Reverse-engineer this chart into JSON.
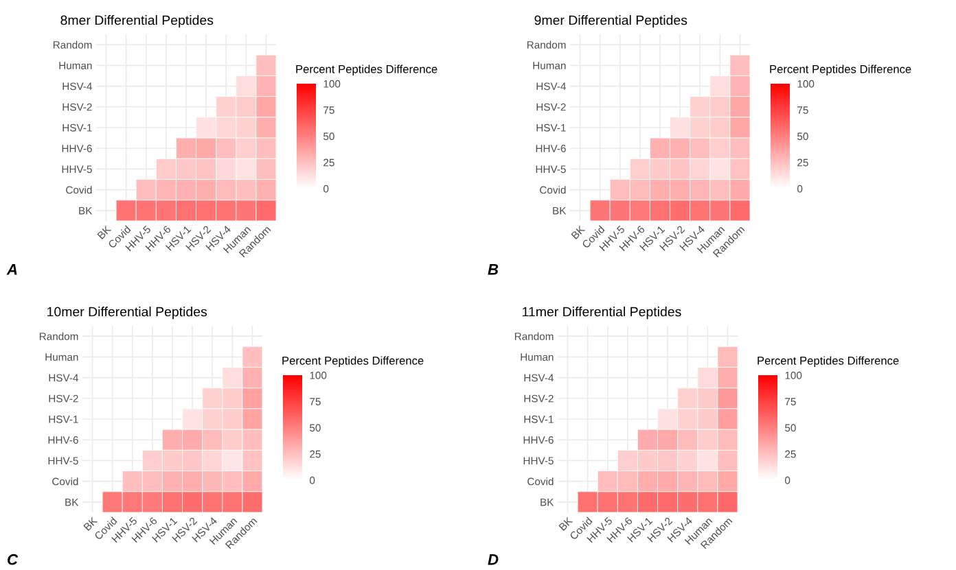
{
  "chart_data": [
    {
      "type": "heatmap",
      "title": "8mer Differential Peptides",
      "clabel": "Percent Peptides Difference",
      "annotations": [
        "A"
      ],
      "grid": true,
      "categories": [
        "BK",
        "Covid",
        "HHV-5",
        "HHV-6",
        "HSV-1",
        "HSV-2",
        "HSV-4",
        "Human",
        "Random"
      ],
      "y_categories": [
        "Random",
        "Human",
        "HSV-4",
        "HSV-2",
        "HSV-1",
        "HHV-6",
        "HHV-5",
        "Covid",
        "BK"
      ],
      "cells": [
        [
          null,
          null,
          null,
          null,
          null,
          null,
          null,
          null,
          null
        ],
        [
          null,
          null,
          null,
          null,
          null,
          null,
          null,
          null,
          25
        ],
        [
          null,
          null,
          null,
          null,
          null,
          null,
          null,
          13,
          30
        ],
        [
          null,
          null,
          null,
          null,
          null,
          null,
          18,
          20,
          35
        ],
        [
          null,
          null,
          null,
          null,
          null,
          12,
          16,
          18,
          32
        ],
        [
          null,
          null,
          null,
          null,
          32,
          34,
          26,
          19,
          26
        ],
        [
          null,
          null,
          null,
          20,
          22,
          24,
          15,
          11,
          25
        ],
        [
          null,
          null,
          26,
          29,
          31,
          32,
          27,
          25,
          31
        ],
        [
          null,
          55,
          55,
          54,
          56,
          56,
          55,
          54,
          58
        ]
      ],
      "colors": [
        "#ffffff",
        "#ff0000"
      ],
      "clim": [
        0,
        100
      ],
      "cticks": [
        0,
        25,
        50,
        75,
        100
      ]
    },
    {
      "type": "heatmap",
      "title": "9mer Differential Peptides",
      "clabel": "Percent Peptides Difference",
      "annotations": [
        "B"
      ],
      "grid": true,
      "categories": [
        "BK",
        "Covid",
        "HHV-5",
        "HHV-6",
        "HSV-1",
        "HSV-2",
        "HSV-4",
        "Human",
        "Random"
      ],
      "y_categories": [
        "Random",
        "Human",
        "HSV-4",
        "HSV-2",
        "HSV-1",
        "HHV-6",
        "HHV-5",
        "Covid",
        "BK"
      ],
      "cells": [
        [
          null,
          null,
          null,
          null,
          null,
          null,
          null,
          null,
          null
        ],
        [
          null,
          null,
          null,
          null,
          null,
          null,
          null,
          null,
          25
        ],
        [
          null,
          null,
          null,
          null,
          null,
          null,
          null,
          13,
          30
        ],
        [
          null,
          null,
          null,
          null,
          null,
          null,
          18,
          20,
          35
        ],
        [
          null,
          null,
          null,
          null,
          null,
          12,
          18,
          20,
          35
        ],
        [
          null,
          null,
          null,
          null,
          31,
          31,
          26,
          19,
          26
        ],
        [
          null,
          null,
          null,
          19,
          21,
          23,
          17,
          11,
          24
        ],
        [
          null,
          null,
          26,
          27,
          32,
          32,
          29,
          25,
          33
        ],
        [
          null,
          54,
          54,
          53,
          56,
          57,
          55,
          54,
          58
        ]
      ],
      "colors": [
        "#ffffff",
        "#ff0000"
      ],
      "clim": [
        0,
        100
      ],
      "cticks": [
        0,
        25,
        50,
        75,
        100
      ]
    },
    {
      "type": "heatmap",
      "title": "10mer Differential Peptides",
      "clabel": "Percent Peptides Difference",
      "annotations": [
        "C"
      ],
      "grid": true,
      "categories": [
        "BK",
        "Covid",
        "HHV-5",
        "HHV-6",
        "HSV-1",
        "HSV-2",
        "HSV-4",
        "Human",
        "Random"
      ],
      "y_categories": [
        "Random",
        "Human",
        "HSV-4",
        "HSV-2",
        "HSV-1",
        "HHV-6",
        "HHV-5",
        "Covid",
        "BK"
      ],
      "cells": [
        [
          null,
          null,
          null,
          null,
          null,
          null,
          null,
          null,
          null
        ],
        [
          null,
          null,
          null,
          null,
          null,
          null,
          null,
          null,
          25
        ],
        [
          null,
          null,
          null,
          null,
          null,
          null,
          null,
          13,
          31
        ],
        [
          null,
          null,
          null,
          null,
          null,
          null,
          18,
          20,
          37
        ],
        [
          null,
          null,
          null,
          null,
          null,
          11,
          18,
          20,
          36
        ],
        [
          null,
          null,
          null,
          null,
          32,
          33,
          27,
          20,
          26
        ],
        [
          null,
          null,
          null,
          19,
          21,
          22,
          17,
          10,
          24
        ],
        [
          null,
          null,
          25,
          26,
          31,
          32,
          28,
          26,
          33
        ],
        [
          null,
          53,
          53,
          52,
          56,
          57,
          55,
          55,
          57
        ]
      ],
      "colors": [
        "#ffffff",
        "#ff0000"
      ],
      "clim": [
        0,
        100
      ],
      "cticks": [
        0,
        25,
        50,
        75,
        100
      ]
    },
    {
      "type": "heatmap",
      "title": "11mer Differential Peptides",
      "clabel": "Percent Peptides Difference",
      "annotations": [
        "D"
      ],
      "grid": true,
      "categories": [
        "BK",
        "Covid",
        "HHV-5",
        "HHV-6",
        "HSV-1",
        "HSV-2",
        "HSV-4",
        "Human",
        "Random"
      ],
      "y_categories": [
        "Random",
        "Human",
        "HSV-4",
        "HSV-2",
        "HSV-1",
        "HHV-6",
        "HHV-5",
        "Covid",
        "BK"
      ],
      "cells": [
        [
          null,
          null,
          null,
          null,
          null,
          null,
          null,
          null,
          null
        ],
        [
          null,
          null,
          null,
          null,
          null,
          null,
          null,
          null,
          27
        ],
        [
          null,
          null,
          null,
          null,
          null,
          null,
          null,
          14,
          32
        ],
        [
          null,
          null,
          null,
          null,
          null,
          null,
          18,
          21,
          40
        ],
        [
          null,
          null,
          null,
          null,
          null,
          12,
          18,
          21,
          39
        ],
        [
          null,
          null,
          null,
          null,
          33,
          34,
          27,
          20,
          27
        ],
        [
          null,
          null,
          null,
          19,
          21,
          22,
          18,
          11,
          26
        ],
        [
          null,
          null,
          26,
          27,
          32,
          33,
          29,
          27,
          34
        ],
        [
          null,
          56,
          56,
          55,
          58,
          58,
          57,
          56,
          59
        ]
      ],
      "colors": [
        "#ffffff",
        "#ff0000"
      ],
      "clim": [
        0,
        100
      ],
      "cticks": [
        0,
        25,
        50,
        75,
        100
      ]
    }
  ]
}
